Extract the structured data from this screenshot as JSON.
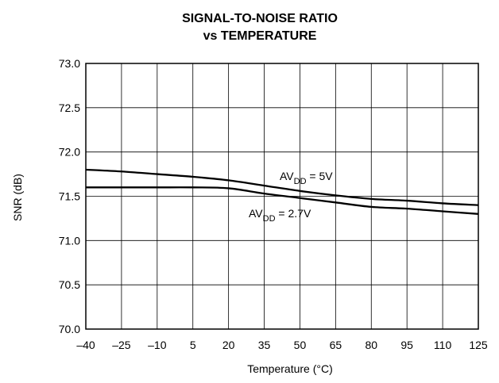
{
  "chart_data": {
    "type": "line",
    "title_lines": [
      "SIGNAL-TO-NOISE RATIO",
      "vs TEMPERATURE"
    ],
    "xlabel": "Temperature (°C)",
    "ylabel": "SNR (dB)",
    "x_ticks": [
      -40,
      -25,
      -10,
      5,
      20,
      35,
      50,
      65,
      80,
      95,
      110,
      125
    ],
    "x_tick_labels": [
      "–40",
      "–25",
      "–10",
      "5",
      "20",
      "35",
      "50",
      "65",
      "80",
      "95",
      "110",
      "125"
    ],
    "y_ticks": [
      70.0,
      70.5,
      71.0,
      71.5,
      72.0,
      72.5,
      73.0
    ],
    "y_tick_labels": [
      "70.0",
      "70.5",
      "71.0",
      "71.5",
      "72.0",
      "72.5",
      "73.0"
    ],
    "xlim": [
      -40,
      125
    ],
    "ylim": [
      70.0,
      73.0
    ],
    "grid": true,
    "series": [
      {
        "label_main": "AV",
        "label_sub": "DD",
        "label_rest": " = 5V",
        "x": [
          -40,
          -25,
          -10,
          5,
          20,
          35,
          50,
          65,
          80,
          95,
          110,
          125
        ],
        "values": [
          71.8,
          71.78,
          71.75,
          71.72,
          71.68,
          71.62,
          71.56,
          71.51,
          71.47,
          71.45,
          71.42,
          71.4
        ]
      },
      {
        "label_main": "AV",
        "label_sub": "DD",
        "label_rest": " = 2.7V",
        "x": [
          -40,
          -25,
          -10,
          5,
          20,
          35,
          50,
          65,
          80,
          95,
          110,
          125
        ],
        "values": [
          71.6,
          71.6,
          71.6,
          71.6,
          71.59,
          71.53,
          71.48,
          71.43,
          71.38,
          71.36,
          71.33,
          71.3
        ]
      }
    ],
    "colors": {
      "line": "#000000",
      "grid": "#000000",
      "text": "#000000",
      "background": "#ffffff"
    }
  }
}
